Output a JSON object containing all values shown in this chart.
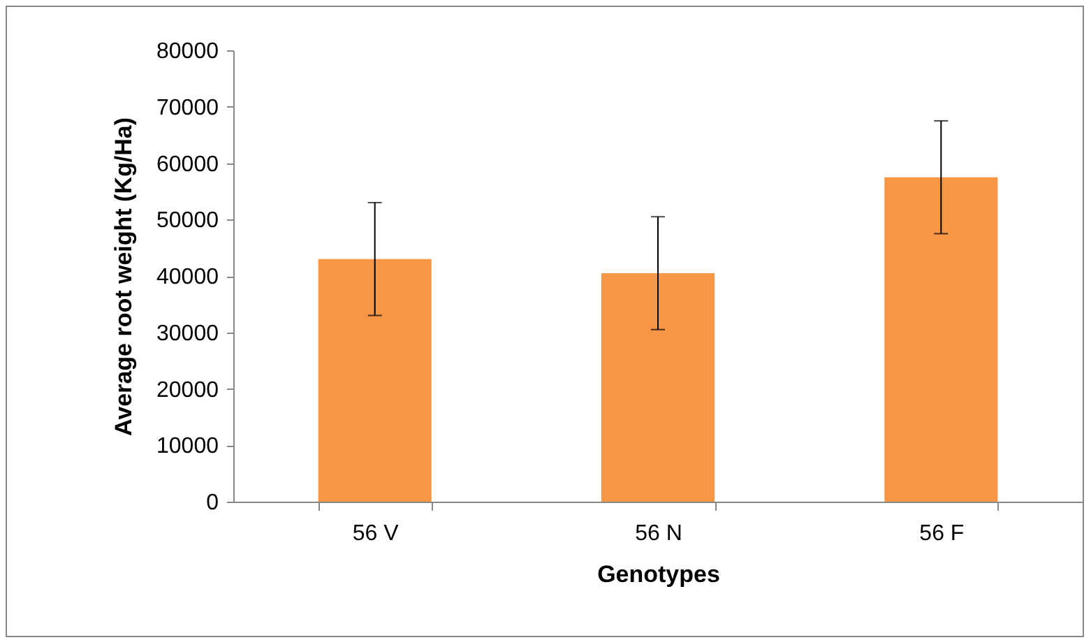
{
  "chart_data": {
    "type": "bar",
    "xlabel": "Genotypes",
    "ylabel": "Average root weight (Kg/Ha)",
    "categories": [
      "56 V",
      "56 N",
      "56 F"
    ],
    "values": [
      43000,
      40500,
      57500
    ],
    "errors": [
      10000,
      10000,
      10000
    ],
    "color": "#f79646",
    "ylim": [
      0,
      80000
    ],
    "yticks": [
      0,
      10000,
      20000,
      30000,
      40000,
      50000,
      60000,
      70000,
      80000
    ],
    "grid": false
  }
}
